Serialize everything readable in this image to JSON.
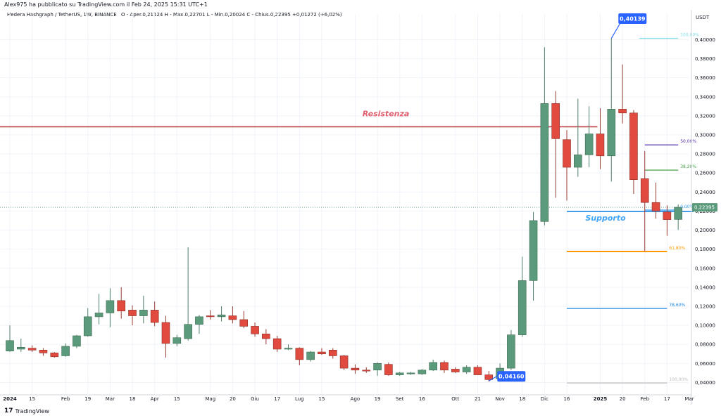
{
  "header": {
    "publisher": "Alex975 ha pubblicato su TradingView.com il Feb 24, 2025 15:31 UTC+1",
    "symbol_info": "Hedera Hashgraph / TetherUS, 1W, BINANCE",
    "ohlc": "O - Aper.0,21124  H - Max.0,22701  L - Min.0,20024  C - Chius.0,22395  +0,01272 (+6,02%)"
  },
  "footer": {
    "logo_text": "TradingView",
    "logo_icon": "tradingview-logo-icon"
  },
  "chart_data": {
    "type": "candlestick",
    "currency_label": "USDT",
    "y_axis": {
      "ticks": [
        "0,04000",
        "0,06000",
        "0,08000",
        "0,10000",
        "0,12000",
        "0,14000",
        "0,16000",
        "0,18000",
        "0,20000",
        "0,22000",
        "0,24000",
        "0,26000",
        "0,28000",
        "0,30000",
        "0,32000",
        "0,34000",
        "0,36000",
        "0,38000",
        "0,40000"
      ],
      "range": [
        0.0285,
        0.4195
      ]
    },
    "x_axis": {
      "ticks": [
        {
          "label": "2024",
          "i": 0,
          "bold": true
        },
        {
          "label": "15",
          "i": 2
        },
        {
          "label": "Feb",
          "i": 5
        },
        {
          "label": "19",
          "i": 7
        },
        {
          "label": "Mar",
          "i": 9
        },
        {
          "label": "18",
          "i": 11
        },
        {
          "label": "Apr",
          "i": 13
        },
        {
          "label": "15",
          "i": 15
        },
        {
          "label": "Mag",
          "i": 18
        },
        {
          "label": "20",
          "i": 20
        },
        {
          "label": "Giu",
          "i": 22
        },
        {
          "label": "17",
          "i": 24
        },
        {
          "label": "Lug",
          "i": 26
        },
        {
          "label": "15",
          "i": 28
        },
        {
          "label": "Ago",
          "i": 31
        },
        {
          "label": "19",
          "i": 33
        },
        {
          "label": "Set",
          "i": 35
        },
        {
          "label": "16",
          "i": 37
        },
        {
          "label": "Ott",
          "i": 40
        },
        {
          "label": "21",
          "i": 42
        },
        {
          "label": "Nov",
          "i": 44
        },
        {
          "label": "18",
          "i": 46
        },
        {
          "label": "Dic",
          "i": 48
        },
        {
          "label": "16",
          "i": 50
        },
        {
          "label": "2025",
          "i": 53,
          "bold": true
        },
        {
          "label": "20",
          "i": 55
        },
        {
          "label": "Feb",
          "i": 57
        },
        {
          "label": "17",
          "i": 59
        },
        {
          "label": "Mar",
          "i": 61
        }
      ]
    },
    "candles": [
      {
        "o": 0.073,
        "h": 0.1,
        "l": 0.072,
        "c": 0.084
      },
      {
        "o": 0.075,
        "h": 0.086,
        "l": 0.072,
        "c": 0.077
      },
      {
        "o": 0.076,
        "h": 0.079,
        "l": 0.072,
        "c": 0.074
      },
      {
        "o": 0.074,
        "h": 0.076,
        "l": 0.068,
        "c": 0.071
      },
      {
        "o": 0.071,
        "h": 0.072,
        "l": 0.066,
        "c": 0.067
      },
      {
        "o": 0.068,
        "h": 0.081,
        "l": 0.067,
        "c": 0.078
      },
      {
        "o": 0.078,
        "h": 0.09,
        "l": 0.076,
        "c": 0.089
      },
      {
        "o": 0.089,
        "h": 0.118,
        "l": 0.088,
        "c": 0.109
      },
      {
        "o": 0.109,
        "h": 0.133,
        "l": 0.101,
        "c": 0.113
      },
      {
        "o": 0.113,
        "h": 0.139,
        "l": 0.098,
        "c": 0.126
      },
      {
        "o": 0.126,
        "h": 0.14,
        "l": 0.107,
        "c": 0.115
      },
      {
        "o": 0.116,
        "h": 0.121,
        "l": 0.1,
        "c": 0.11
      },
      {
        "o": 0.11,
        "h": 0.131,
        "l": 0.102,
        "c": 0.116
      },
      {
        "o": 0.116,
        "h": 0.125,
        "l": 0.099,
        "c": 0.103
      },
      {
        "o": 0.103,
        "h": 0.11,
        "l": 0.066,
        "c": 0.081
      },
      {
        "o": 0.081,
        "h": 0.09,
        "l": 0.078,
        "c": 0.087
      },
      {
        "o": 0.086,
        "h": 0.182,
        "l": 0.084,
        "c": 0.101
      },
      {
        "o": 0.101,
        "h": 0.111,
        "l": 0.091,
        "c": 0.109
      },
      {
        "o": 0.11,
        "h": 0.116,
        "l": 0.106,
        "c": 0.109
      },
      {
        "o": 0.109,
        "h": 0.12,
        "l": 0.104,
        "c": 0.111
      },
      {
        "o": 0.11,
        "h": 0.12,
        "l": 0.102,
        "c": 0.106
      },
      {
        "o": 0.106,
        "h": 0.115,
        "l": 0.097,
        "c": 0.099
      },
      {
        "o": 0.099,
        "h": 0.103,
        "l": 0.088,
        "c": 0.091
      },
      {
        "o": 0.091,
        "h": 0.096,
        "l": 0.08,
        "c": 0.086
      },
      {
        "o": 0.086,
        "h": 0.089,
        "l": 0.072,
        "c": 0.075
      },
      {
        "o": 0.075,
        "h": 0.08,
        "l": 0.074,
        "c": 0.076
      },
      {
        "o": 0.076,
        "h": 0.077,
        "l": 0.058,
        "c": 0.064
      },
      {
        "o": 0.064,
        "h": 0.073,
        "l": 0.062,
        "c": 0.072
      },
      {
        "o": 0.072,
        "h": 0.076,
        "l": 0.069,
        "c": 0.07
      },
      {
        "o": 0.074,
        "h": 0.076,
        "l": 0.065,
        "c": 0.068
      },
      {
        "o": 0.068,
        "h": 0.069,
        "l": 0.053,
        "c": 0.055
      },
      {
        "o": 0.055,
        "h": 0.059,
        "l": 0.049,
        "c": 0.053
      },
      {
        "o": 0.053,
        "h": 0.056,
        "l": 0.05,
        "c": 0.052
      },
      {
        "o": 0.053,
        "h": 0.061,
        "l": 0.047,
        "c": 0.06
      },
      {
        "o": 0.059,
        "h": 0.061,
        "l": 0.047,
        "c": 0.048
      },
      {
        "o": 0.048,
        "h": 0.051,
        "l": 0.047,
        "c": 0.05
      },
      {
        "o": 0.049,
        "h": 0.051,
        "l": 0.048,
        "c": 0.05
      },
      {
        "o": 0.049,
        "h": 0.054,
        "l": 0.048,
        "c": 0.053
      },
      {
        "o": 0.053,
        "h": 0.064,
        "l": 0.052,
        "c": 0.061
      },
      {
        "o": 0.061,
        "h": 0.063,
        "l": 0.05,
        "c": 0.053
      },
      {
        "o": 0.054,
        "h": 0.056,
        "l": 0.05,
        "c": 0.051
      },
      {
        "o": 0.051,
        "h": 0.058,
        "l": 0.049,
        "c": 0.056
      },
      {
        "o": 0.056,
        "h": 0.058,
        "l": 0.048,
        "c": 0.048
      },
      {
        "o": 0.048,
        "h": 0.052,
        "l": 0.041,
        "c": 0.043
      },
      {
        "o": 0.044,
        "h": 0.06,
        "l": 0.041,
        "c": 0.055
      },
      {
        "o": 0.055,
        "h": 0.095,
        "l": 0.053,
        "c": 0.09
      },
      {
        "o": 0.09,
        "h": 0.172,
        "l": 0.088,
        "c": 0.147
      },
      {
        "o": 0.147,
        "h": 0.219,
        "l": 0.126,
        "c": 0.21
      },
      {
        "o": 0.209,
        "h": 0.392,
        "l": 0.205,
        "c": 0.333
      },
      {
        "o": 0.333,
        "h": 0.346,
        "l": 0.234,
        "c": 0.296
      },
      {
        "o": 0.295,
        "h": 0.305,
        "l": 0.231,
        "c": 0.266
      },
      {
        "o": 0.266,
        "h": 0.338,
        "l": 0.256,
        "c": 0.279
      },
      {
        "o": 0.279,
        "h": 0.33,
        "l": 0.266,
        "c": 0.301
      },
      {
        "o": 0.301,
        "h": 0.328,
        "l": 0.264,
        "c": 0.278
      },
      {
        "o": 0.278,
        "h": 0.4014,
        "l": 0.251,
        "c": 0.327
      },
      {
        "o": 0.327,
        "h": 0.374,
        "l": 0.312,
        "c": 0.323
      },
      {
        "o": 0.323,
        "h": 0.326,
        "l": 0.238,
        "c": 0.253
      },
      {
        "o": 0.254,
        "h": 0.283,
        "l": 0.178,
        "c": 0.229
      },
      {
        "o": 0.229,
        "h": 0.25,
        "l": 0.212,
        "c": 0.22
      },
      {
        "o": 0.219,
        "h": 0.226,
        "l": 0.194,
        "c": 0.211
      },
      {
        "o": 0.2112,
        "h": 0.227,
        "l": 0.2002,
        "c": 0.224
      }
    ],
    "last_price": {
      "value": 0.22395,
      "label": "0,22395"
    },
    "high_label": {
      "value": 0.40139,
      "label": "0,40139",
      "i": 54
    },
    "low_label": {
      "value": 0.0416,
      "label": "0,04160",
      "i": 43
    },
    "resistance": {
      "value": 0.3085,
      "label": "Resistenza",
      "from_i": -1,
      "to_i": 53
    },
    "support": {
      "value": 0.2195,
      "label": "Supporto",
      "from_i": 50,
      "to_i": 61
    },
    "fib_levels": [
      {
        "label": "100,00%",
        "value": 0.4014,
        "color": "#80deea",
        "from_i": 56.5,
        "to_i": 60
      },
      {
        "label": "50,00%",
        "value": 0.2895,
        "color": "#512da8",
        "from_i": 57,
        "to_i": 60
      },
      {
        "label": "38,20%",
        "value": 0.263,
        "color": "#43a047",
        "from_i": 57,
        "to_i": 60
      },
      {
        "label": "0,00%",
        "value": 0.221,
        "color": "#42a5f5",
        "from_i": 57,
        "to_i": 60
      },
      {
        "label": "61,80%",
        "value": 0.1775,
        "color": "#ff9800",
        "from_i": 50,
        "to_i": 59,
        "thick": true
      },
      {
        "label": "78,60%",
        "value": 0.1177,
        "color": "#1e88e5",
        "from_i": 50,
        "to_i": 59
      },
      {
        "label": "100,00%",
        "value": 0.0395,
        "color": "#bdbdbd",
        "from_i": 50,
        "to_i": 59
      }
    ],
    "colors": {
      "up": "#5b9a7a",
      "down": "#e04a3f",
      "resistance": "#c2404c",
      "support": "#1e88e5"
    }
  }
}
